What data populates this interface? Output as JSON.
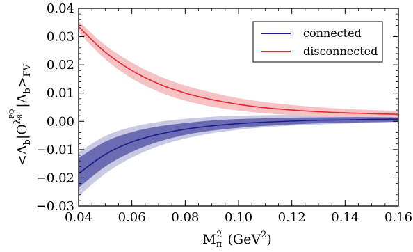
{
  "chart_data": {
    "type": "line",
    "xlabel_base": "M",
    "xlabel_sub": "π",
    "xlabel_sup": "2",
    "xlabel_unit": "(GeV",
    "xlabel_unit_sup": "2",
    "xlabel_unit_close": ")",
    "ylabel_left": "<Λ",
    "ylabel_sub1": "b",
    "ylabel_mid": "|O",
    "ylabel_sup": "λ",
    "ylabel_supsub": "8",
    "ylabel_supsup": "PQ",
    "ylabel_bar": "|Λ",
    "ylabel_sub2": "b",
    "ylabel_right": ">",
    "ylabel_sub3": "FV",
    "xlim": [
      0.04,
      0.16
    ],
    "ylim": [
      -0.03,
      0.04
    ],
    "xticks": [
      "0.04",
      "0.06",
      "0.08",
      "0.10",
      "0.12",
      "0.14",
      "0.16"
    ],
    "yticks": [
      "-0.03",
      "-0.02",
      "-0.01",
      "0.00",
      "0.01",
      "0.02",
      "0.03",
      "0.04"
    ],
    "legend_position": "top-right",
    "series": [
      {
        "name": "connected",
        "color": "#1c1c8c",
        "band_inner_color": "#6b6bb2",
        "band_outer_color": "#c9c9e4",
        "x": [
          0.04,
          0.05,
          0.06,
          0.07,
          0.08,
          0.09,
          0.1,
          0.11,
          0.12,
          0.13,
          0.14,
          0.15,
          0.16
        ],
        "y": [
          -0.0185,
          -0.0117,
          -0.0073,
          -0.0046,
          -0.0028,
          -0.0016,
          -0.0008,
          -0.0003,
          0.0001,
          0.0004,
          0.0005,
          0.0007,
          0.0008
        ],
        "inner_lower": [
          -0.0235,
          -0.016,
          -0.0108,
          -0.0072,
          -0.0048,
          -0.0033,
          -0.0023,
          -0.0016,
          -0.0011,
          -0.0007,
          -0.0005,
          -0.0003,
          -0.0001
        ],
        "inner_upper": [
          -0.013,
          -0.0072,
          -0.0038,
          -0.0018,
          -0.0006,
          0.0003,
          0.0008,
          0.0011,
          0.0013,
          0.0014,
          0.0015,
          0.0016,
          0.0017
        ],
        "outer_lower": [
          -0.0265,
          -0.0185,
          -0.0128,
          -0.0088,
          -0.0061,
          -0.0042,
          -0.003,
          -0.0021,
          -0.0015,
          -0.0011,
          -0.0008,
          -0.0005,
          -0.0003
        ],
        "outer_upper": [
          -0.011,
          -0.0052,
          -0.002,
          -0.0002,
          0.0009,
          0.0016,
          0.002,
          0.0022,
          0.0023,
          0.0023,
          0.0023,
          0.0023,
          0.0023
        ]
      },
      {
        "name": "disconnected",
        "color": "#e8242c",
        "band_outer_color": "#f6c2c4",
        "x": [
          0.04,
          0.05,
          0.06,
          0.07,
          0.08,
          0.09,
          0.1,
          0.11,
          0.12,
          0.13,
          0.14,
          0.15,
          0.16
        ],
        "y": [
          0.0335,
          0.0245,
          0.018,
          0.0133,
          0.01,
          0.0077,
          0.006,
          0.0048,
          0.004,
          0.0034,
          0.003,
          0.0027,
          0.0025
        ],
        "outer_lower": [
          0.0315,
          0.022,
          0.0152,
          0.0105,
          0.0073,
          0.0052,
          0.0038,
          0.0028,
          0.0022,
          0.0018,
          0.0016,
          0.0015,
          0.0014
        ],
        "outer_upper": [
          0.0355,
          0.027,
          0.0208,
          0.0161,
          0.0127,
          0.0102,
          0.0082,
          0.0068,
          0.0058,
          0.005,
          0.0044,
          0.004,
          0.0037
        ]
      }
    ]
  }
}
